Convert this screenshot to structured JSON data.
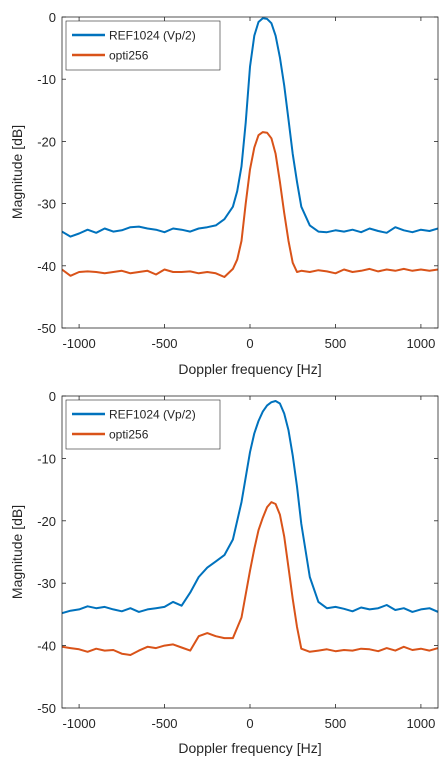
{
  "chart_data": [
    {
      "type": "line",
      "xlabel": "Doppler frequency [Hz]",
      "ylabel": "Magnitude [dB]",
      "xlim": [
        -1100,
        1100
      ],
      "ylim": [
        -50,
        0
      ],
      "xticks": [
        -1000,
        -500,
        0,
        500,
        1000
      ],
      "yticks": [
        0,
        -10,
        -20,
        -30,
        -40,
        -50
      ],
      "grid": false,
      "legend": "top-left",
      "series": [
        {
          "name": "REF1024 (Vp/2)",
          "color": "#0072BD",
          "x": [
            -1100,
            -1050,
            -1000,
            -950,
            -900,
            -850,
            -800,
            -750,
            -700,
            -650,
            -600,
            -550,
            -500,
            -450,
            -400,
            -350,
            -300,
            -250,
            -200,
            -150,
            -100,
            -75,
            -50,
            -25,
            0,
            25,
            50,
            75,
            100,
            125,
            150,
            175,
            200,
            225,
            250,
            275,
            300,
            350,
            400,
            450,
            500,
            550,
            600,
            650,
            700,
            750,
            800,
            850,
            900,
            950,
            1000,
            1050,
            1100
          ],
          "y": [
            -34.5,
            -35.3,
            -34.8,
            -34.2,
            -34.7,
            -34.0,
            -34.5,
            -34.3,
            -33.8,
            -33.7,
            -34.0,
            -34.2,
            -34.6,
            -34.0,
            -34.2,
            -34.5,
            -34.0,
            -33.8,
            -33.5,
            -32.5,
            -30.5,
            -28.0,
            -24.0,
            -17.0,
            -8.0,
            -3.0,
            -0.8,
            -0.2,
            -0.3,
            -1.0,
            -3.0,
            -6.5,
            -11.0,
            -16.5,
            -22.0,
            -26.5,
            -30.5,
            -33.5,
            -34.5,
            -34.6,
            -34.3,
            -34.5,
            -34.2,
            -34.6,
            -34.0,
            -34.4,
            -34.7,
            -33.8,
            -34.3,
            -34.6,
            -34.2,
            -34.4,
            -34.0
          ]
        },
        {
          "name": "opti256",
          "color": "#D95319",
          "x": [
            -1100,
            -1050,
            -1000,
            -950,
            -900,
            -850,
            -800,
            -750,
            -700,
            -650,
            -600,
            -550,
            -500,
            -450,
            -400,
            -350,
            -300,
            -250,
            -200,
            -150,
            -100,
            -75,
            -50,
            -25,
            0,
            25,
            50,
            75,
            100,
            125,
            150,
            175,
            200,
            225,
            250,
            275,
            300,
            350,
            400,
            450,
            500,
            550,
            600,
            650,
            700,
            750,
            800,
            850,
            900,
            950,
            1000,
            1050,
            1100
          ],
          "y": [
            -40.6,
            -41.6,
            -41.0,
            -40.9,
            -41.0,
            -41.2,
            -41.0,
            -40.8,
            -41.2,
            -41.0,
            -40.8,
            -41.4,
            -40.6,
            -41.0,
            -41.0,
            -40.9,
            -41.2,
            -41.0,
            -41.2,
            -41.8,
            -40.5,
            -39.0,
            -36.0,
            -30.0,
            -24.5,
            -21.0,
            -19.0,
            -18.5,
            -18.6,
            -19.5,
            -22.0,
            -26.5,
            -31.5,
            -36.0,
            -39.5,
            -41.0,
            -40.8,
            -41.0,
            -40.7,
            -40.9,
            -41.2,
            -40.6,
            -41.0,
            -40.8,
            -40.5,
            -40.9,
            -40.6,
            -40.8,
            -40.5,
            -40.8,
            -40.6,
            -40.8,
            -40.6
          ]
        }
      ]
    },
    {
      "type": "line",
      "xlabel": "Doppler frequency [Hz]",
      "ylabel": "Magnitude [dB]",
      "xlim": [
        -1100,
        1100
      ],
      "ylim": [
        -50,
        0
      ],
      "xticks": [
        -1000,
        -500,
        0,
        500,
        1000
      ],
      "yticks": [
        0,
        -10,
        -20,
        -30,
        -40,
        -50
      ],
      "grid": false,
      "legend": "top-left",
      "series": [
        {
          "name": "REF1024 (Vp/2)",
          "color": "#0072BD",
          "x": [
            -1100,
            -1050,
            -1000,
            -950,
            -900,
            -850,
            -800,
            -750,
            -700,
            -650,
            -600,
            -550,
            -500,
            -450,
            -400,
            -350,
            -300,
            -250,
            -200,
            -150,
            -100,
            -50,
            0,
            25,
            50,
            75,
            100,
            125,
            150,
            175,
            200,
            225,
            250,
            275,
            300,
            350,
            400,
            450,
            500,
            550,
            600,
            650,
            700,
            750,
            800,
            850,
            900,
            950,
            1000,
            1050,
            1100
          ],
          "y": [
            -34.8,
            -34.4,
            -34.2,
            -33.7,
            -34.0,
            -33.8,
            -34.2,
            -34.5,
            -34.0,
            -34.6,
            -34.2,
            -34.0,
            -33.8,
            -33.0,
            -33.6,
            -31.5,
            -29.0,
            -27.5,
            -26.5,
            -25.5,
            -23.0,
            -17.0,
            -9.0,
            -6.0,
            -4.0,
            -2.5,
            -1.5,
            -1.0,
            -0.8,
            -1.2,
            -2.8,
            -5.5,
            -9.5,
            -14.5,
            -20.5,
            -29.0,
            -33.0,
            -34.0,
            -33.8,
            -34.1,
            -34.5,
            -33.9,
            -34.2,
            -34.0,
            -33.5,
            -34.3,
            -34.0,
            -34.6,
            -34.2,
            -34.0,
            -34.6
          ]
        },
        {
          "name": "opti256",
          "color": "#D95319",
          "x": [
            -1100,
            -1050,
            -1000,
            -950,
            -900,
            -850,
            -800,
            -750,
            -700,
            -650,
            -600,
            -550,
            -500,
            -450,
            -400,
            -350,
            -300,
            -250,
            -200,
            -150,
            -100,
            -50,
            0,
            25,
            50,
            75,
            100,
            125,
            150,
            175,
            200,
            225,
            250,
            275,
            300,
            350,
            400,
            450,
            500,
            550,
            600,
            650,
            700,
            750,
            800,
            850,
            900,
            950,
            1000,
            1050,
            1100
          ],
          "y": [
            -40.2,
            -40.4,
            -40.6,
            -41.0,
            -40.5,
            -40.8,
            -40.7,
            -41.3,
            -41.5,
            -40.8,
            -40.2,
            -40.4,
            -40.0,
            -39.8,
            -40.3,
            -40.8,
            -38.5,
            -38.0,
            -38.5,
            -38.8,
            -38.8,
            -35.5,
            -28.0,
            -24.5,
            -21.5,
            -19.5,
            -17.8,
            -17.0,
            -17.3,
            -19.0,
            -22.5,
            -27.5,
            -32.5,
            -37.0,
            -40.5,
            -41.0,
            -40.8,
            -40.6,
            -40.9,
            -40.7,
            -40.8,
            -40.5,
            -40.6,
            -40.9,
            -40.4,
            -40.8,
            -40.2,
            -40.7,
            -40.5,
            -40.8,
            -40.4
          ]
        }
      ]
    }
  ]
}
